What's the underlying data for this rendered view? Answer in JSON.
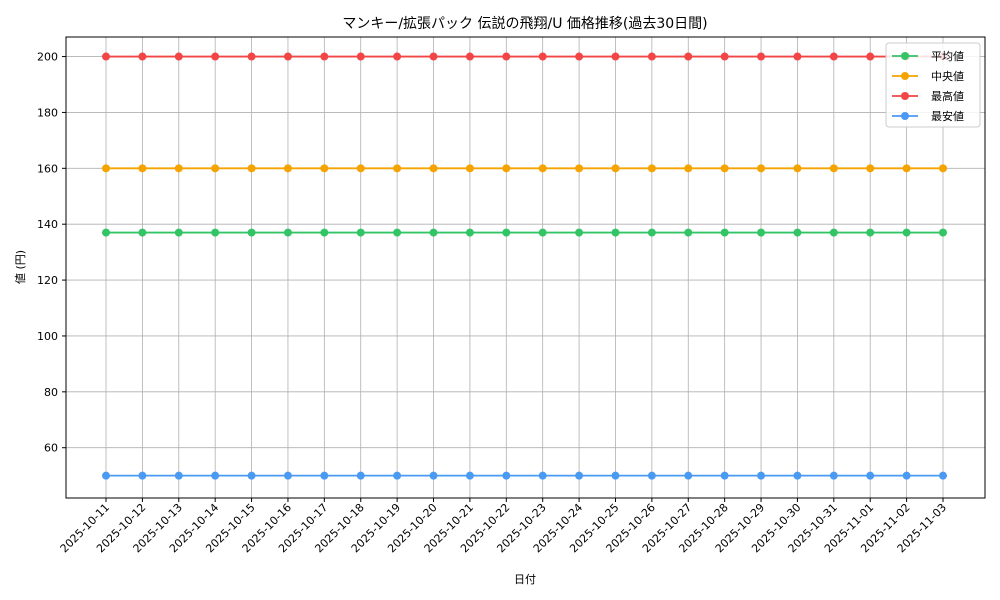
{
  "chart_data": {
    "type": "line",
    "title": "マンキー/拡張パック 伝説の飛翔/U 価格推移(過去30日間)",
    "xlabel": "日付",
    "ylabel": "値 (円)",
    "ylim": [
      42,
      207
    ],
    "yticks": [
      60,
      80,
      100,
      120,
      140,
      160,
      180,
      200
    ],
    "grid": true,
    "legend_position": "top-right",
    "x": [
      "2025-10-11",
      "2025-10-12",
      "2025-10-13",
      "2025-10-14",
      "2025-10-15",
      "2025-10-16",
      "2025-10-17",
      "2025-10-18",
      "2025-10-19",
      "2025-10-20",
      "2025-10-21",
      "2025-10-22",
      "2025-10-23",
      "2025-10-24",
      "2025-10-25",
      "2025-10-26",
      "2025-10-27",
      "2025-10-28",
      "2025-10-29",
      "2025-10-30",
      "2025-10-31",
      "2025-11-01",
      "2025-11-02",
      "2025-11-03"
    ],
    "series": [
      {
        "name": "平均値",
        "color": "#33c466",
        "values": [
          137,
          137,
          137,
          137,
          137,
          137,
          137,
          137,
          137,
          137,
          137,
          137,
          137,
          137,
          137,
          137,
          137,
          137,
          137,
          137,
          137,
          137,
          137,
          137
        ]
      },
      {
        "name": "中央値",
        "color": "#f5a300",
        "values": [
          160,
          160,
          160,
          160,
          160,
          160,
          160,
          160,
          160,
          160,
          160,
          160,
          160,
          160,
          160,
          160,
          160,
          160,
          160,
          160,
          160,
          160,
          160,
          160
        ]
      },
      {
        "name": "最高値",
        "color": "#f24545",
        "values": [
          200,
          200,
          200,
          200,
          200,
          200,
          200,
          200,
          200,
          200,
          200,
          200,
          200,
          200,
          200,
          200,
          200,
          200,
          200,
          200,
          200,
          200,
          200,
          200
        ]
      },
      {
        "name": "最安値",
        "color": "#4a99f2",
        "values": [
          50,
          50,
          50,
          50,
          50,
          50,
          50,
          50,
          50,
          50,
          50,
          50,
          50,
          50,
          50,
          50,
          50,
          50,
          50,
          50,
          50,
          50,
          50,
          50
        ]
      }
    ]
  }
}
